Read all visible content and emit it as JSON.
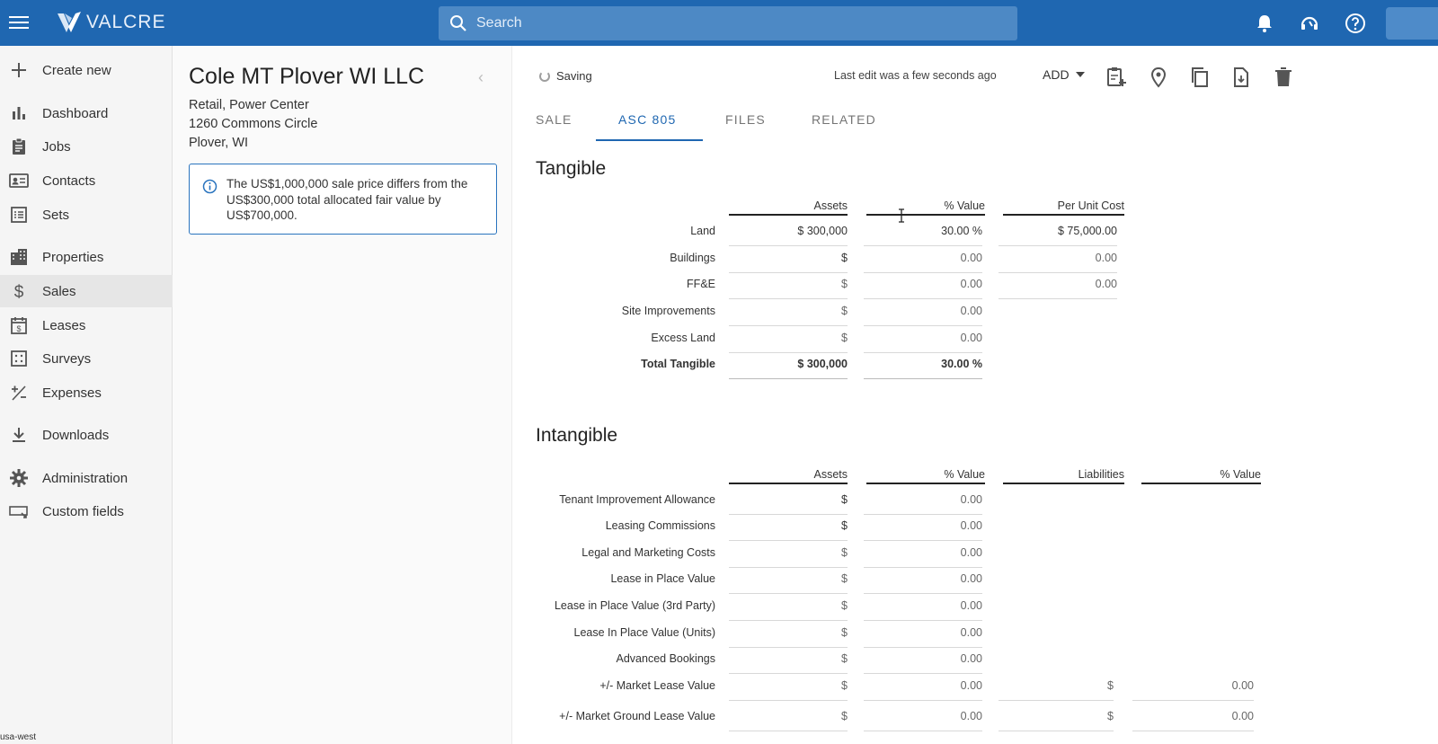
{
  "app": {
    "logo_text": "VALCRE",
    "search_placeholder": "Search",
    "region": "usa-west"
  },
  "sidebar": {
    "items": [
      {
        "label": "Create new",
        "icon": "plus-icon"
      },
      {
        "label": "Dashboard",
        "icon": "bar-chart-icon"
      },
      {
        "label": "Jobs",
        "icon": "clipboard-icon"
      },
      {
        "label": "Contacts",
        "icon": "contact-card-icon"
      },
      {
        "label": "Sets",
        "icon": "list-icon"
      },
      {
        "label": "Properties",
        "icon": "building-icon"
      },
      {
        "label": "Sales",
        "icon": "dollar-icon"
      },
      {
        "label": "Leases",
        "icon": "calendar-dollar-icon"
      },
      {
        "label": "Surveys",
        "icon": "grid-dots-icon"
      },
      {
        "label": "Expenses",
        "icon": "plus-minus-icon"
      },
      {
        "label": "Downloads",
        "icon": "download-icon"
      },
      {
        "label": "Administration",
        "icon": "gear-icon"
      },
      {
        "label": "Custom fields",
        "icon": "custom-field-icon"
      }
    ]
  },
  "summary": {
    "title": "Cole MT Plover WI LLC",
    "type": "Retail, Power Center",
    "address": "1260 Commons Circle",
    "city": "Plover, WI",
    "notice": "The US$1,000,000 sale price differs from the US$300,000 total allocated fair value by US$700,000."
  },
  "toolbar": {
    "saving": "Saving",
    "last_edit": "Last edit was a few seconds ago",
    "add": "ADD"
  },
  "tabs": [
    "SALE",
    "ASC 805",
    "FILES",
    "RELATED"
  ],
  "tangible": {
    "title": "Tangible",
    "headers": [
      "Assets",
      "% Value",
      "Per Unit Cost"
    ],
    "rows": [
      {
        "label": "Land",
        "assets": "$ 300,000",
        "pct": "30.00 %",
        "unit": "$ 75,000.00"
      },
      {
        "label": "Buildings",
        "assets": "$",
        "pct": "0.00",
        "unit": "0.00"
      },
      {
        "label": "FF&E",
        "assets": "$",
        "pct": "0.00",
        "unit": "0.00"
      },
      {
        "label": "Site Improvements",
        "assets": "$",
        "pct": "0.00"
      },
      {
        "label": "Excess Land",
        "assets": "$",
        "pct": "0.00"
      }
    ],
    "total": {
      "label": "Total Tangible",
      "assets": "$ 300,000",
      "pct": "30.00 %"
    }
  },
  "intangible": {
    "title": "Intangible",
    "headers": [
      "Assets",
      "% Value",
      "Liabilities",
      "% Value"
    ],
    "rows": [
      {
        "label": "Tenant Improvement Allowance",
        "assets": "$",
        "pct": "0.00"
      },
      {
        "label": "Leasing Commissions",
        "assets": "$",
        "pct": "0.00"
      },
      {
        "label": "Legal and Marketing Costs",
        "assets": "$",
        "pct": "0.00"
      },
      {
        "label": "Lease in Place Value",
        "assets": "$",
        "pct": "0.00"
      },
      {
        "label": "Lease in Place Value (3rd Party)",
        "assets": "$",
        "pct": "0.00"
      },
      {
        "label": "Lease In Place Value (Units)",
        "assets": "$",
        "pct": "0.00"
      },
      {
        "label": "Advanced Bookings",
        "assets": "$",
        "pct": "0.00"
      },
      {
        "label": "+/- Market Lease Value",
        "assets": "$",
        "pct": "0.00",
        "liab": "$",
        "lpct": "0.00"
      },
      {
        "label": "+/- Market Ground Lease Value",
        "assets": "$",
        "pct": "0.00",
        "liab": "$",
        "lpct": "0.00"
      }
    ]
  },
  "colors": {
    "brand": "#1f67b1",
    "accent": "#2a74be"
  }
}
